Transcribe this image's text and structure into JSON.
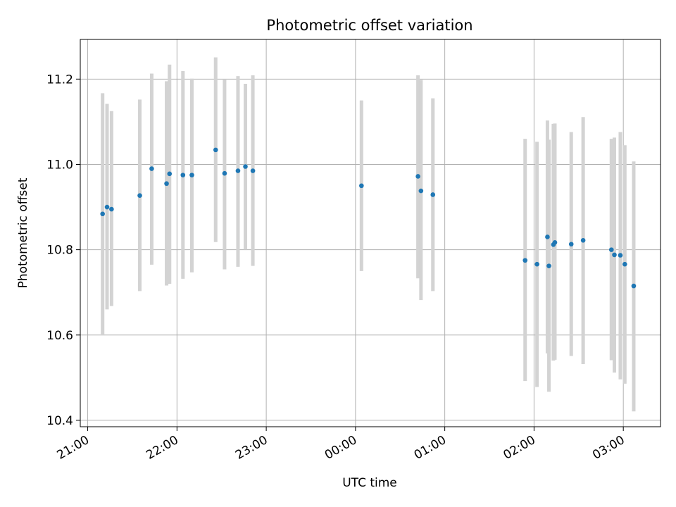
{
  "chart_data": {
    "type": "scatter",
    "title": "Photometric offset variation",
    "xlabel": "UTC time",
    "ylabel": "Photometric offset",
    "xlim": [
      "20:55",
      "03:25"
    ],
    "ylim": [
      10.385,
      11.293
    ],
    "grid": true,
    "x_ticks": [
      "21:00",
      "22:00",
      "23:00",
      "00:00",
      "01:00",
      "02:00",
      "03:00"
    ],
    "y_ticks": [
      "10.4",
      "10.6",
      "10.8",
      "11.0",
      "11.2"
    ],
    "colors": {
      "point": "#1f77b4",
      "errorbar": "#d3d3d3",
      "grid": "#b0b0b0"
    },
    "series": [
      {
        "x": [
          "21:10",
          "21:13",
          "21:16",
          "21:35",
          "21:43",
          "21:53",
          "21:55",
          "22:04",
          "22:10",
          "22:26",
          "22:32",
          "22:41",
          "22:46",
          "22:51",
          "00:04",
          "00:42",
          "00:44",
          "00:52",
          "01:54",
          "02:02",
          "02:09",
          "02:10",
          "02:13",
          "02:14",
          "02:25",
          "02:33",
          "02:52",
          "02:54",
          "02:58",
          "03:01",
          "03:07"
        ],
        "y": [
          10.884,
          10.9,
          10.895,
          10.927,
          10.99,
          10.955,
          10.978,
          10.975,
          10.975,
          11.034,
          10.979,
          10.985,
          10.995,
          10.985,
          10.95,
          10.972,
          10.938,
          10.929,
          10.775,
          10.766,
          10.83,
          10.762,
          10.812,
          10.817,
          10.813,
          10.822,
          10.8,
          10.788,
          10.787,
          10.766,
          10.715
        ],
        "yerr_low": [
          10.599,
          10.66,
          10.668,
          10.703,
          10.765,
          10.716,
          10.72,
          10.732,
          10.747,
          10.818,
          10.754,
          10.76,
          10.8,
          10.762,
          10.75,
          10.733,
          10.682,
          10.703,
          10.492,
          10.478,
          10.557,
          10.467,
          10.54,
          10.542,
          10.551,
          10.532,
          10.541,
          10.512,
          10.496,
          10.486,
          10.421
        ],
        "yerr_high": [
          11.167,
          11.142,
          11.125,
          11.152,
          11.213,
          11.195,
          11.234,
          11.219,
          11.201,
          11.251,
          11.2,
          11.207,
          11.189,
          11.209,
          11.15,
          11.209,
          11.198,
          11.155,
          11.06,
          11.053,
          11.103,
          11.058,
          11.095,
          11.096,
          11.076,
          11.111,
          11.06,
          11.063,
          11.076,
          11.045,
          11.007
        ]
      }
    ]
  }
}
